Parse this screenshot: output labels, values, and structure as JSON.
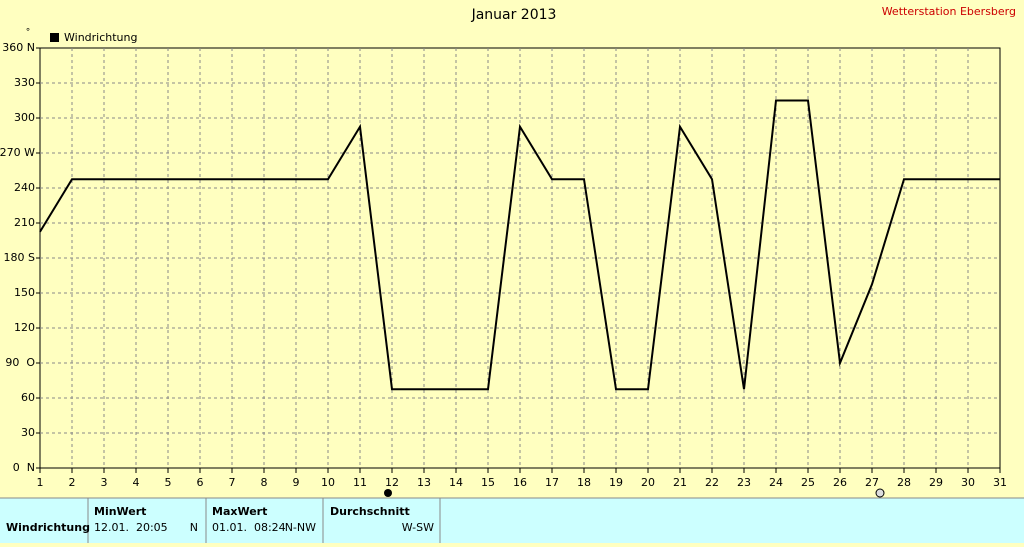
{
  "chart_data": {
    "type": "line",
    "title": "Januar 2013",
    "station": "Wetterstation Ebersberg",
    "y_label": "°",
    "x": [
      1,
      2,
      3,
      4,
      5,
      6,
      7,
      8,
      9,
      10,
      11,
      12,
      13,
      14,
      15,
      16,
      17,
      18,
      19,
      20,
      21,
      22,
      23,
      24,
      25,
      26,
      27,
      28,
      29,
      30,
      31
    ],
    "series": [
      {
        "name": "Windrichtung",
        "color": "#000000",
        "values": [
          202.5,
          247.5,
          247.5,
          247.5,
          247.5,
          247.5,
          247.5,
          247.5,
          247.5,
          247.5,
          292.5,
          67.5,
          67.5,
          67.5,
          67.5,
          292.5,
          247.5,
          247.5,
          67.5,
          67.5,
          292.5,
          247.5,
          67.5,
          315,
          315,
          90,
          157.5,
          247.5,
          247.5,
          247.5,
          247.5
        ]
      }
    ],
    "xlim": [
      1,
      31
    ],
    "xticks": [
      1,
      2,
      3,
      4,
      5,
      6,
      7,
      8,
      9,
      10,
      11,
      12,
      13,
      14,
      15,
      16,
      17,
      18,
      19,
      20,
      21,
      22,
      23,
      24,
      25,
      26,
      27,
      28,
      29,
      30,
      31
    ],
    "ylim": [
      0,
      360
    ],
    "yticks": [
      {
        "value": 0,
        "label": "0  N"
      },
      30,
      60,
      {
        "value": 90,
        "label": "90  O"
      },
      120,
      150,
      {
        "value": 180,
        "label": "180 S"
      },
      210,
      240,
      {
        "value": 270,
        "label": "270 W"
      },
      300,
      330,
      {
        "value": 360,
        "label": "360 N"
      }
    ],
    "grid": true
  },
  "summary": {
    "row_label": "Windrichtung",
    "columns": [
      {
        "header": "MinWert",
        "time": "12.01.  20:05",
        "direction": "N"
      },
      {
        "header": "MaxWert",
        "time": "01.01.  08:24",
        "direction": "N-NW"
      },
      {
        "header": "Durchschnitt",
        "direction": "W-SW"
      }
    ]
  }
}
